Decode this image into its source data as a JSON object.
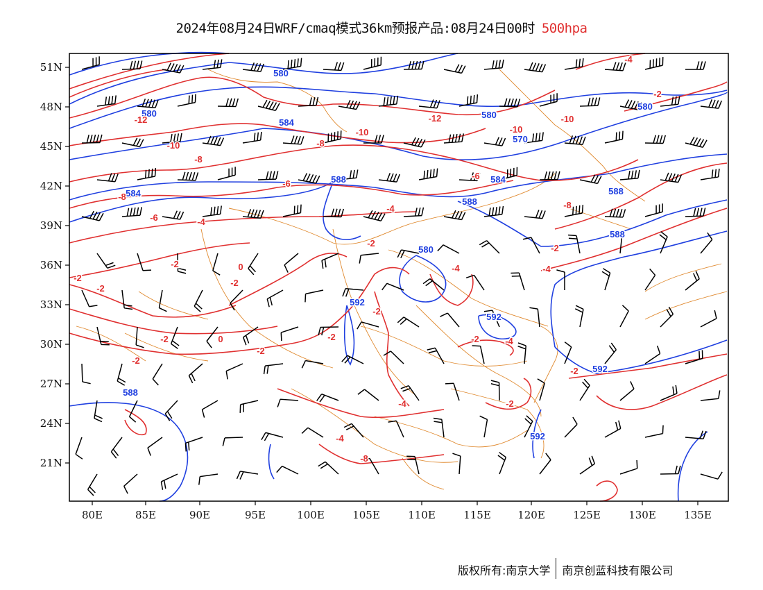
{
  "title": {
    "main": "2024年08月24日WRF/cmaq模式36km预报产品:08月24日00时",
    "level": "500hpa",
    "level_color": "#e03030"
  },
  "map": {
    "lon_ticks": [
      "80E",
      "85E",
      "90E",
      "95E",
      "100E",
      "105E",
      "110E",
      "115E",
      "120E",
      "125E",
      "130E",
      "135E"
    ],
    "lat_ticks": [
      "51N",
      "48N",
      "45N",
      "42N",
      "39N",
      "36N",
      "33N",
      "30N",
      "27N",
      "24N",
      "21N"
    ],
    "colors": {
      "geopotential_height": "#2040e0",
      "temperature": "#e03030",
      "boundaries": "#e08a30",
      "wind_barbs": "#000000"
    },
    "height_labels": [
      "580",
      "580",
      "580",
      "584",
      "584",
      "584",
      "588",
      "588",
      "588",
      "588",
      "588",
      "580",
      "570",
      "580",
      "592",
      "592",
      "592",
      "592"
    ],
    "temperature_labels": [
      "-12",
      "-10",
      "-8",
      "-8",
      "-6",
      "-6",
      "-4",
      "-10",
      "-12",
      "-8",
      "-10",
      "-10",
      "-8",
      "-6",
      "-4",
      "-2",
      "-2",
      "-2",
      "-2",
      "-2",
      "0",
      "0",
      "-2",
      "-2",
      "-2",
      "-2",
      "-2",
      "-4",
      "-2",
      "-4",
      "-4",
      "-4",
      "-8",
      "-2",
      "-2",
      "-4",
      "-2",
      "-2",
      "-4"
    ]
  },
  "footer": {
    "left": "版权所有:南京大学",
    "right": "南京创蓝科技有限公司"
  }
}
